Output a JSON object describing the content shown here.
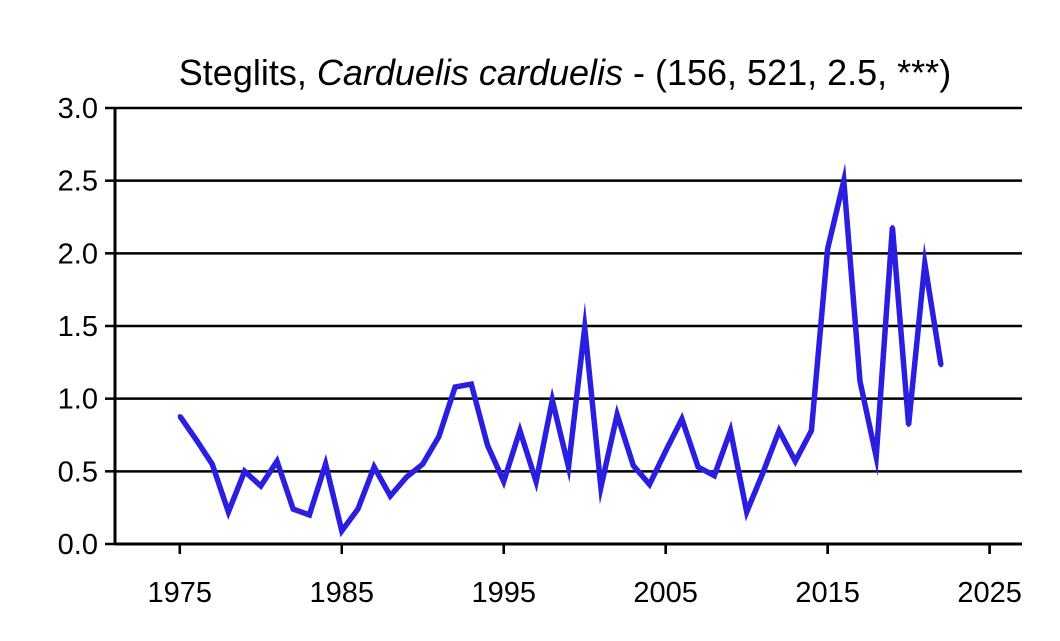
{
  "chart_data": {
    "type": "line",
    "title_prefix": "Steglits, ",
    "title_species": "Carduelis carduelis",
    "title_suffix": " - (156, 521, 2.5, ***)",
    "xlabel": "",
    "ylabel": "",
    "xlim": [
      1971,
      2027
    ],
    "ylim": [
      0.0,
      3.0
    ],
    "x_ticks": [
      "1975",
      "1985",
      "1995",
      "2005",
      "2015",
      "2025"
    ],
    "y_ticks": [
      "0.0",
      "0.5",
      "1.0",
      "1.5",
      "2.0",
      "2.5",
      "3.0"
    ],
    "grid": "horizontal",
    "line_color": "#2a1fe0",
    "series": [
      {
        "x": [
          1975,
          1976,
          1977,
          1978,
          1979,
          1980,
          1981,
          1982,
          1983,
          1984,
          1985,
          1986,
          1987,
          1988,
          1989,
          1990,
          1991,
          1992,
          1993,
          1994,
          1995,
          1996,
          1997,
          1998,
          1999,
          2000,
          2001,
          2002,
          2003,
          2004,
          2005,
          2006,
          2007,
          2008,
          2009,
          2010,
          2011,
          2012,
          2013,
          2014,
          2015,
          2016,
          2017,
          2018,
          2019,
          2020,
          2021,
          2022
        ],
        "values": [
          0.88,
          0.72,
          0.55,
          0.22,
          0.5,
          0.4,
          0.57,
          0.24,
          0.2,
          0.55,
          0.09,
          0.24,
          0.53,
          0.33,
          0.46,
          0.55,
          0.74,
          1.08,
          1.1,
          0.68,
          0.43,
          0.78,
          0.43,
          0.99,
          0.53,
          1.49,
          0.39,
          0.89,
          0.54,
          0.41,
          0.64,
          0.86,
          0.53,
          0.47,
          0.78,
          0.22,
          0.49,
          0.78,
          0.57,
          0.78,
          2.03,
          2.5,
          1.12,
          0.6,
          2.18,
          0.82,
          1.93,
          1.23
        ]
      }
    ]
  }
}
